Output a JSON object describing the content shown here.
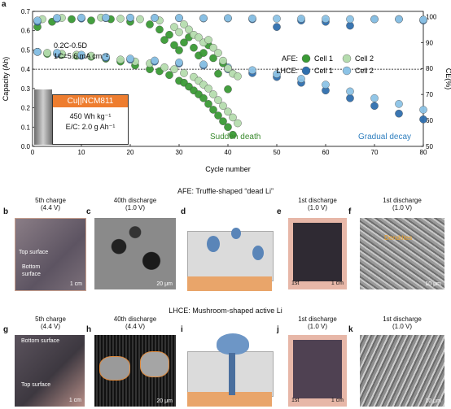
{
  "figure": {
    "panel_a": {
      "letter": "a",
      "ylabel_left": "Capacity (Ah)",
      "ylabel_right": "CE(%)",
      "xlabel": "Cycle number",
      "x_ticks": [
        "0",
        "10",
        "20",
        "30",
        "40",
        "50",
        "60",
        "70",
        "80"
      ],
      "y_left_ticks": [
        "0.0",
        "0.1",
        "0.2",
        "0.3",
        "0.4",
        "0.5",
        "0.6",
        "0.7"
      ],
      "y_right_ticks": [
        "50",
        "60",
        "70",
        "80",
        "90",
        "100"
      ],
      "rate_text": "0.2C-0.5D",
      "c_text": "1C=5.6 mA cm⁻²",
      "cell_label": "Cu||NCM811",
      "spec1": "450 Wh kg⁻¹",
      "spec2": "E/C: 2.0 g Ah⁻¹",
      "legend": {
        "afe": "AFE:",
        "lhce": "LHCE:",
        "cell1": "Cell 1",
        "cell2": "Cell 2"
      },
      "annot_sudden": "Sudden death",
      "annot_gradual": "Gradual decay"
    },
    "afe_title": "AFE: Truffle-shaped “dead Li”",
    "lhce_title": "LHCE: Mushroom-shaped active Li",
    "panels_top": [
      {
        "letter": "b",
        "cap1": "5th charge",
        "cap2": "(4.4 V)",
        "top": "Top surface",
        "bottom1": "Bottom",
        "bottom2": "surface",
        "scale": "1 cm"
      },
      {
        "letter": "c",
        "cap1": "40th discharge",
        "cap2": "(1.0 V)",
        "scale": "20 μm"
      },
      {
        "letter": "d"
      },
      {
        "letter": "e",
        "cap1": "1st discharge",
        "cap2": "(1.0 V)",
        "tag": "1st",
        "scale": "1 cm"
      },
      {
        "letter": "f",
        "cap1": "1st discharge",
        "cap2": "(1.0 V)",
        "mark": "Dendrites",
        "scale": "10 μm"
      }
    ],
    "panels_bottom": [
      {
        "letter": "g",
        "cap1": "5th charge",
        "cap2": "(4.4 V)",
        "top": "Top surface",
        "bottom": "Bottom surface",
        "scale": "1 cm"
      },
      {
        "letter": "h",
        "cap1": "40th discharge",
        "cap2": "(4.4 V)",
        "scale": "20 μm"
      },
      {
        "letter": "i"
      },
      {
        "letter": "j",
        "cap1": "1st discharge",
        "cap2": "(1.0 V)",
        "tag": "1st",
        "scale": "1 cm"
      },
      {
        "letter": "k",
        "cap1": "1st discharge",
        "cap2": "(1.0 V)",
        "scale": "10 μm"
      }
    ]
  },
  "chart_data": {
    "type": "scatter",
    "xlabel": "Cycle number",
    "ylabel": "Capacity (Ah)",
    "ylabel_right": "CE(%)",
    "xlim": [
      0,
      80
    ],
    "ylim": [
      0,
      0.7
    ],
    "ylim_right": [
      50,
      102
    ],
    "reference_line_y": 0.4,
    "colors": {
      "afe1": "#3a9a35",
      "afe2": "#b5dcae",
      "lhce1": "#2f6fae",
      "lhce2": "#8cc3e6"
    },
    "series": [
      {
        "name": "AFE Cell 1",
        "axis": "capacity",
        "x": [
          1,
          3,
          6,
          9,
          12,
          15,
          18,
          21,
          24,
          26,
          28,
          30,
          31,
          32,
          33,
          34,
          35,
          36,
          37,
          38,
          39,
          40,
          41
        ],
        "y": [
          0.49,
          0.48,
          0.475,
          0.47,
          0.465,
          0.455,
          0.44,
          0.42,
          0.4,
          0.39,
          0.37,
          0.34,
          0.33,
          0.31,
          0.29,
          0.27,
          0.25,
          0.22,
          0.19,
          0.16,
          0.13,
          0.1,
          0.06
        ]
      },
      {
        "name": "AFE Cell 2",
        "axis": "capacity",
        "x": [
          1,
          3,
          6,
          9,
          12,
          15,
          18,
          21,
          24,
          27,
          29,
          31,
          33,
          34,
          35,
          36,
          37,
          38,
          39,
          40,
          41,
          42
        ],
        "y": [
          0.49,
          0.485,
          0.48,
          0.475,
          0.47,
          0.46,
          0.45,
          0.44,
          0.43,
          0.41,
          0.4,
          0.38,
          0.36,
          0.34,
          0.32,
          0.3,
          0.27,
          0.24,
          0.21,
          0.18,
          0.15,
          0.12
        ]
      },
      {
        "name": "LHCE Cell 1",
        "axis": "capacity",
        "x": [
          1,
          5,
          10,
          15,
          20,
          25,
          30,
          35,
          40,
          45,
          50,
          55,
          60,
          65,
          70,
          75,
          80
        ],
        "y": [
          0.49,
          0.48,
          0.47,
          0.46,
          0.45,
          0.44,
          0.43,
          0.42,
          0.4,
          0.38,
          0.36,
          0.33,
          0.29,
          0.25,
          0.21,
          0.17,
          0.14
        ]
      },
      {
        "name": "LHCE Cell 2",
        "axis": "capacity",
        "x": [
          1,
          5,
          10,
          15,
          20,
          25,
          30,
          35,
          40,
          45,
          50,
          55,
          60,
          65,
          70,
          75,
          80
        ],
        "y": [
          0.49,
          0.485,
          0.475,
          0.465,
          0.455,
          0.445,
          0.435,
          0.425,
          0.41,
          0.395,
          0.375,
          0.35,
          0.32,
          0.285,
          0.25,
          0.22,
          0.19
        ]
      },
      {
        "name": "AFE Cell 1",
        "axis": "ce",
        "x": [
          1,
          4,
          8,
          12,
          16,
          20,
          24,
          26,
          27,
          28,
          29,
          30,
          31,
          32,
          33,
          34,
          35,
          36,
          37,
          38,
          39,
          40
        ],
        "y": [
          96,
          98,
          99,
          98.5,
          99,
          98,
          97,
          95,
          91,
          93,
          89,
          87,
          90,
          92,
          88,
          85,
          86,
          89,
          84,
          78,
          82,
          72
        ]
      },
      {
        "name": "AFE Cell 2",
        "axis": "ce",
        "x": [
          2,
          6,
          10,
          14,
          18,
          22,
          26,
          29,
          30,
          31,
          32,
          33,
          34,
          35,
          36,
          37,
          38,
          39,
          40,
          41,
          42
        ],
        "y": [
          99,
          99.5,
          99.3,
          99.6,
          99.2,
          99,
          98.5,
          96,
          94,
          97,
          95,
          93,
          92,
          90,
          91,
          88,
          86,
          83,
          80,
          78,
          77
        ]
      },
      {
        "name": "LHCE Cell 1",
        "axis": "ce",
        "x": [
          1,
          5,
          10,
          15,
          20,
          25,
          30,
          35,
          40,
          45,
          50,
          55,
          60,
          65,
          70,
          75,
          80
        ],
        "y": [
          98,
          99.2,
          99.3,
          99.4,
          99.5,
          99.5,
          99.4,
          99.3,
          99.3,
          99,
          96,
          98.5,
          98,
          96.5,
          99,
          99,
          98.5
        ]
      },
      {
        "name": "LHCE Cell 2",
        "axis": "ce",
        "x": [
          1,
          5,
          10,
          15,
          20,
          25,
          30,
          35,
          40,
          45,
          50,
          55,
          60,
          65,
          70,
          75,
          80
        ],
        "y": [
          98.5,
          99.5,
          99.6,
          99.6,
          99.6,
          99.5,
          99.5,
          99.4,
          99.4,
          99.3,
          99.2,
          99.2,
          99.1,
          99,
          99,
          99,
          98.8
        ]
      }
    ]
  }
}
